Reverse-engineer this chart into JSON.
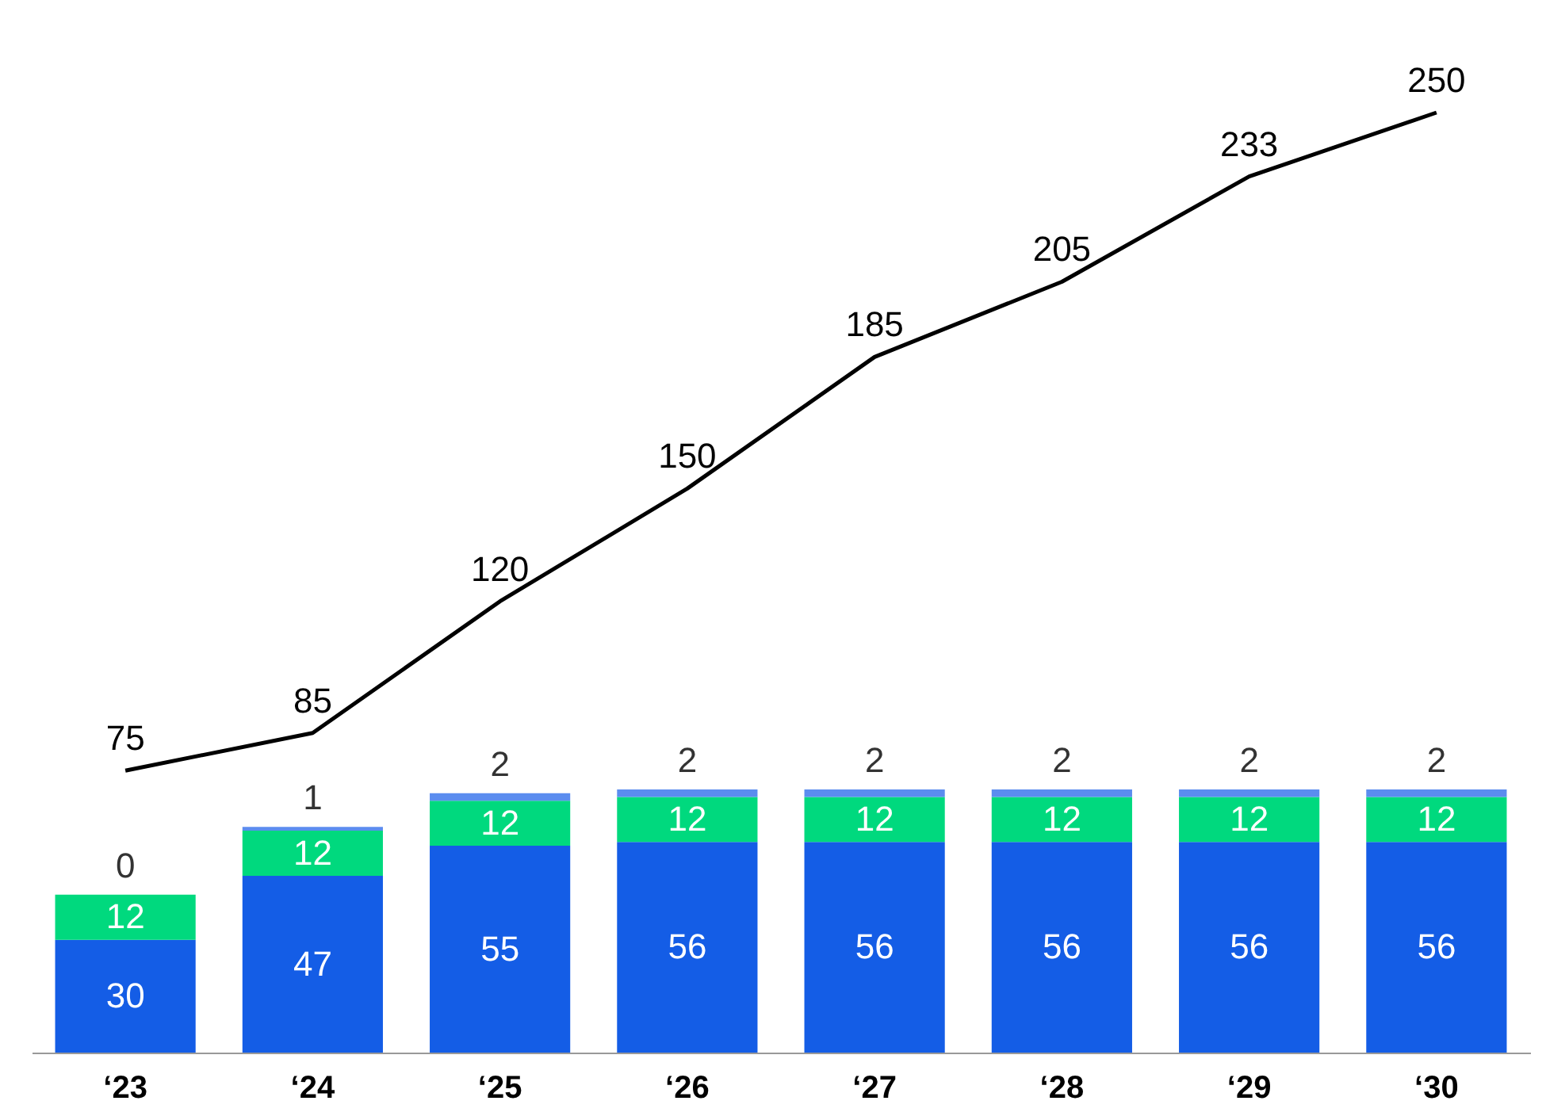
{
  "chart_data": {
    "type": "bar",
    "stacked": true,
    "data_labels": true,
    "tick_labels": "x",
    "grid": false,
    "categories": [
      "‘23",
      "‘24",
      "‘25",
      "‘26",
      "‘27",
      "‘28",
      "‘29",
      "‘30"
    ],
    "series": [
      {
        "color": "#145de6",
        "values": [
          30,
          47,
          55,
          56,
          56,
          56,
          56,
          56
        ]
      },
      {
        "color": "#00d97e",
        "values": [
          12,
          12,
          12,
          12,
          12,
          12,
          12,
          12
        ]
      },
      {
        "color": "#5b8def",
        "values": [
          0,
          1,
          2,
          2,
          2,
          2,
          2,
          2
        ]
      },
      {
        "type": "line",
        "color": "#000000",
        "values": [
          75,
          85,
          120,
          150,
          185,
          205,
          233,
          250
        ]
      }
    ]
  }
}
